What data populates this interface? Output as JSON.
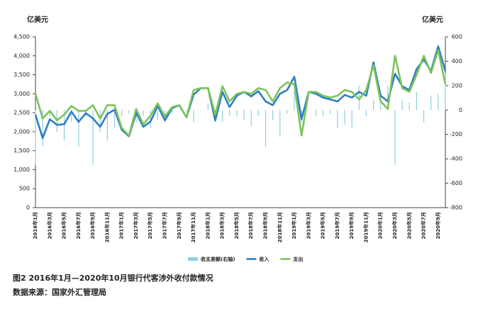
{
  "chart_data": {
    "type": "combo",
    "y_label": "亿美元",
    "y2_label": "亿美元",
    "caption": "图2 2016年1月—2020年10月银行代客涉外收付款情况",
    "source": "数据来源：国家外汇管理局",
    "categories": [
      "2016年1月",
      null,
      "2016年3月",
      null,
      "2016年5月",
      null,
      "2016年7月",
      null,
      "2016年9月",
      null,
      "2016年11月",
      null,
      "2017年1月",
      null,
      "2017年3月",
      null,
      "2017年5月",
      null,
      "2017年7月",
      null,
      "2017年9月",
      null,
      "2017年11月",
      null,
      "2018年1月",
      null,
      "2018年3月",
      null,
      "2018年5月",
      null,
      "2018年7月",
      null,
      "2018年9月",
      null,
      "2018年11月",
      null,
      "2019年1月",
      null,
      "2019年3月",
      null,
      "2019年5月",
      null,
      "2019年7月",
      null,
      "2019年9月",
      null,
      "2019年11月",
      null,
      "2020年1月",
      null,
      "2020年3月",
      null,
      "2020年5月",
      null,
      "2020年7月",
      null,
      "2020年9月",
      null
    ],
    "series": [
      {
        "name": "收支差额(右轴)",
        "kind": "bar",
        "axis": "y2",
        "color": "#8fcfe0",
        "values": [
          -450,
          -300,
          -50,
          -180,
          -250,
          -100,
          -300,
          -50,
          -450,
          -180,
          -250,
          -150,
          -50,
          -30,
          -100,
          -50,
          -150,
          -80,
          -100,
          -30,
          0,
          -10,
          -100,
          0,
          50,
          -100,
          -100,
          -50,
          -50,
          -80,
          -130,
          -50,
          -300,
          -80,
          -220,
          -30,
          150,
          -100,
          0,
          -50,
          -50,
          -30,
          -150,
          -120,
          -150,
          200,
          -50,
          80,
          150,
          200,
          -450,
          80,
          60,
          150,
          -100,
          120,
          130,
          300
        ]
      },
      {
        "name": "收入",
        "kind": "line",
        "color": "#2f7fc1",
        "values": [
          2450,
          1830,
          2330,
          2180,
          2200,
          2530,
          2260,
          2490,
          2350,
          2130,
          2470,
          2580,
          2050,
          1880,
          2500,
          2130,
          2270,
          2680,
          2300,
          2620,
          2700,
          2380,
          2980,
          3150,
          3150,
          2300,
          3050,
          2650,
          2950,
          3050,
          2930,
          3070,
          2800,
          2700,
          3000,
          3100,
          3450,
          2330,
          3050,
          3000,
          2900,
          2850,
          2800,
          2970,
          2900,
          3050,
          2950,
          3830,
          2950,
          2800,
          3530,
          3200,
          3100,
          3650,
          3900,
          3600,
          4250,
          3600
        ]
      },
      {
        "name": "支出",
        "kind": "line",
        "color": "#7dc35b",
        "values": [
          3000,
          2350,
          2550,
          2300,
          2450,
          2680,
          2550,
          2550,
          2700,
          2350,
          2700,
          2700,
          2100,
          1900,
          2600,
          2200,
          2420,
          2750,
          2400,
          2650,
          2700,
          2380,
          3100,
          3150,
          3150,
          2450,
          3200,
          2800,
          3000,
          3050,
          3000,
          3150,
          3100,
          2800,
          3150,
          3300,
          3250,
          1900,
          3050,
          3050,
          2950,
          2900,
          2950,
          3100,
          3050,
          2850,
          3100,
          3750,
          2800,
          2600,
          4000,
          3150,
          3050,
          3500,
          4000,
          3550,
          4150,
          3250
        ]
      }
    ],
    "ylim": [
      0,
      4500
    ],
    "yticks": [
      0,
      500,
      {
        "value": 1000,
        "label": "1,000"
      },
      {
        "value": 1500,
        "label": "1,500"
      },
      {
        "value": 2000,
        "label": "2,000"
      },
      {
        "value": 2500,
        "label": "2,500"
      },
      {
        "value": 3000,
        "label": "3,000"
      },
      {
        "value": 3500,
        "label": "3,500"
      },
      {
        "value": 4000,
        "label": "4,000"
      },
      {
        "value": 4500,
        "label": "4,500"
      }
    ],
    "y2lim": [
      -800,
      600
    ],
    "y2ticks": [
      -800,
      -600,
      -400,
      -200,
      0,
      200,
      400,
      600
    ]
  }
}
